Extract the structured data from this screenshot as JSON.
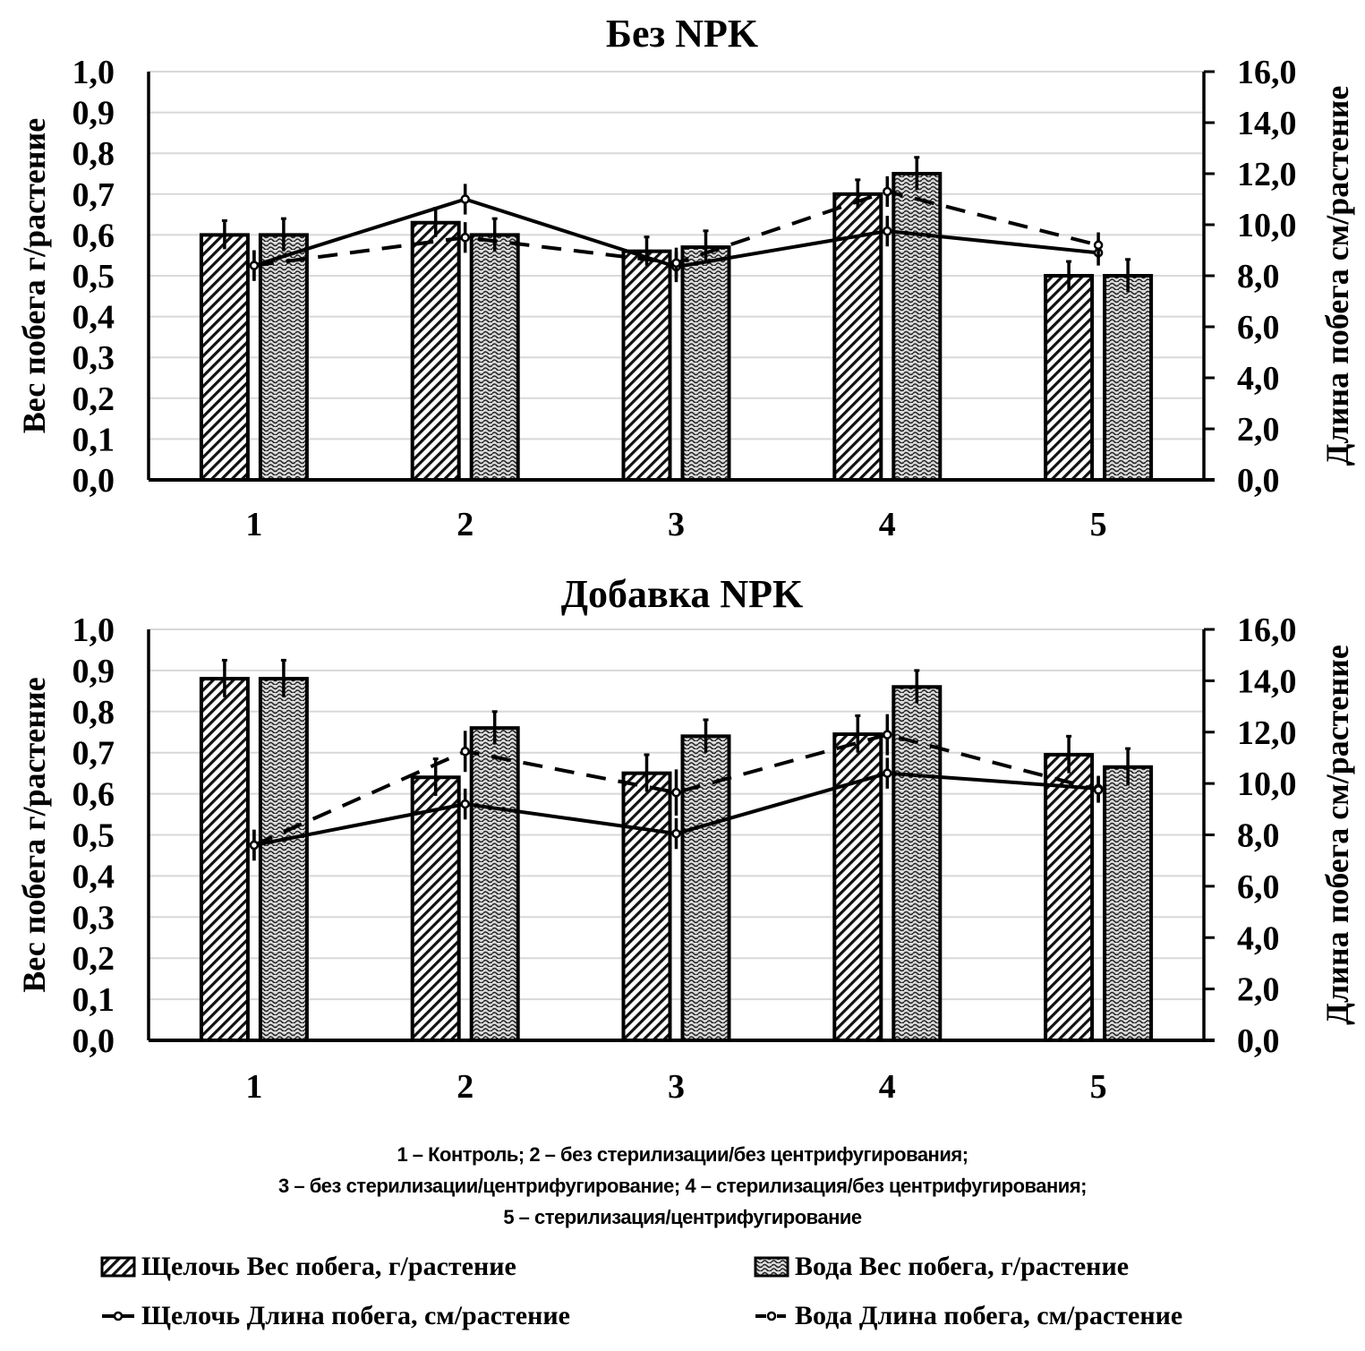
{
  "chart_data": [
    {
      "type": "bar+line",
      "title": "Без NPK",
      "categories": [
        "1",
        "2",
        "3",
        "4",
        "5"
      ],
      "ylabel_left": "Вес побега г/растение",
      "ylabel_right": "Длина побега см/растение",
      "ylim_left": [
        0,
        1.0
      ],
      "ylim_right": [
        0,
        16.0
      ],
      "yticks_left": [
        "0,0",
        "0,1",
        "0,2",
        "0,3",
        "0,4",
        "0,5",
        "0,6",
        "0,7",
        "0,8",
        "0,9",
        "1,0"
      ],
      "yticks_right": [
        "0,0",
        "2,0",
        "4,0",
        "6,0",
        "8,0",
        "10,0",
        "12,0",
        "14,0",
        "16,0"
      ],
      "grid": true,
      "bar_series": [
        {
          "name": "Щелочь Вес побега, г/растение",
          "pattern": "diagonal-hatch",
          "values": [
            0.6,
            0.63,
            0.56,
            0.7,
            0.5
          ],
          "errors": [
            0.035,
            0.035,
            0.035,
            0.035,
            0.035
          ]
        },
        {
          "name": "Вода Вес побега, г/растение",
          "pattern": "wave-hatch",
          "values": [
            0.6,
            0.6,
            0.57,
            0.75,
            0.5
          ],
          "errors": [
            0.04,
            0.04,
            0.04,
            0.04,
            0.04
          ]
        }
      ],
      "line_series": [
        {
          "name": "Щелочь Длина побега, см/растение",
          "style": "solid",
          "axis": "right",
          "values": [
            8.4,
            11.0,
            8.35,
            9.75,
            8.9
          ],
          "errors": [
            0.6,
            0.6,
            0.6,
            0.6,
            0.5
          ]
        },
        {
          "name": "Вода Длина побега, см/растение",
          "style": "dashed",
          "axis": "right",
          "values": [
            8.4,
            9.5,
            8.5,
            11.3,
            9.2
          ],
          "errors": [
            0.6,
            0.6,
            0.6,
            0.6,
            0.5
          ]
        }
      ]
    },
    {
      "type": "bar+line",
      "title": "Добавка NPK",
      "categories": [
        "1",
        "2",
        "3",
        "4",
        "5"
      ],
      "ylabel_left": "Вес побега г/растение",
      "ylabel_right": "Длина побега см/растение",
      "ylim_left": [
        0,
        1.0
      ],
      "ylim_right": [
        0,
        16.0
      ],
      "yticks_left": [
        "0,0",
        "0,1",
        "0,2",
        "0,3",
        "0,4",
        "0,5",
        "0,6",
        "0,7",
        "0,8",
        "0,9",
        "1,0"
      ],
      "yticks_right": [
        "0,0",
        "2,0",
        "4,0",
        "6,0",
        "8,0",
        "10,0",
        "12,0",
        "14,0",
        "16,0"
      ],
      "grid": true,
      "bar_series": [
        {
          "name": "Щелочь Вес побега, г/растение",
          "pattern": "diagonal-hatch",
          "values": [
            0.88,
            0.64,
            0.65,
            0.745,
            0.695
          ],
          "errors": [
            0.045,
            0.045,
            0.045,
            0.045,
            0.045
          ]
        },
        {
          "name": "Вода Вес побега, г/растение",
          "pattern": "wave-hatch",
          "values": [
            0.88,
            0.76,
            0.74,
            0.86,
            0.665
          ],
          "errors": [
            0.045,
            0.04,
            0.04,
            0.04,
            0.045
          ]
        }
      ],
      "line_series": [
        {
          "name": "Щелочь Длина побега, см/растение",
          "style": "solid",
          "axis": "right",
          "values": [
            7.6,
            9.2,
            8.05,
            10.4,
            9.8
          ],
          "errors": [
            0.6,
            0.6,
            0.6,
            0.6,
            0.5
          ]
        },
        {
          "name": "Вода Длина побега, см/растение",
          "style": "dashed",
          "axis": "right",
          "values": [
            7.6,
            11.25,
            9.65,
            11.9,
            9.75
          ],
          "errors": [
            0.6,
            0.8,
            0.9,
            0.8,
            0.5
          ]
        }
      ]
    }
  ],
  "caption": {
    "line1": "1 – Контроль; 2 – без стерилизации/без центрифугирования;",
    "line2": "3 – без стерилизации/центрифугирование; 4 – стерилизация/без центрифугирования;",
    "line3": "5 – стерилизация/центрифугирование"
  },
  "legend": {
    "items": [
      {
        "label": "Щелочь Вес побега, г/растение",
        "marker": "diagonal-hatch-swatch"
      },
      {
        "label": "Вода Вес побега, г/растение",
        "marker": "wave-hatch-swatch"
      },
      {
        "label": "Щелочь Длина побега, см/растение",
        "marker": "solid-line-circle"
      },
      {
        "label": "Вода Длина побега, см/растение",
        "marker": "dashed-line-circle"
      }
    ]
  }
}
